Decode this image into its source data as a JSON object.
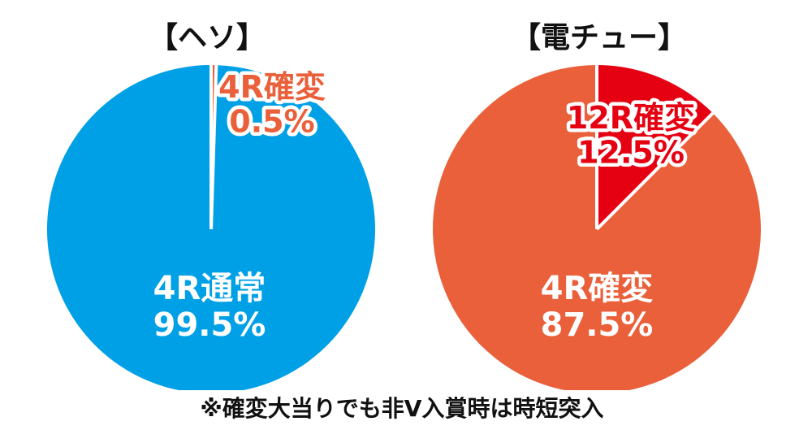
{
  "chart_data": [
    {
      "type": "pie",
      "title": "【ヘソ】",
      "start_angle_deg": 0,
      "direction": "clockwise",
      "slices": [
        {
          "label": "4R確変",
          "value": 0.5,
          "value_text": "0.5%",
          "color": "#e9603a",
          "label_style": "outlined"
        },
        {
          "label": "4R通常",
          "value": 99.5,
          "value_text": "99.5%",
          "color": "#00a0e6",
          "label_style": "plain"
        }
      ]
    },
    {
      "type": "pie",
      "title": "【電チュー】",
      "start_angle_deg": 0,
      "direction": "clockwise",
      "slices": [
        {
          "label": "12R確変",
          "value": 12.5,
          "value_text": "12.5%",
          "color": "#e50012",
          "label_style": "outlined"
        },
        {
          "label": "4R確変",
          "value": 87.5,
          "value_text": "87.5%",
          "color": "#e9603a",
          "label_style": "plain"
        }
      ]
    }
  ],
  "footnote": "※確変大当りでも非V入賞時は時短突入",
  "colors": {
    "separator": "#ffffff",
    "outline": "#ffffff",
    "text": "#111111"
  }
}
